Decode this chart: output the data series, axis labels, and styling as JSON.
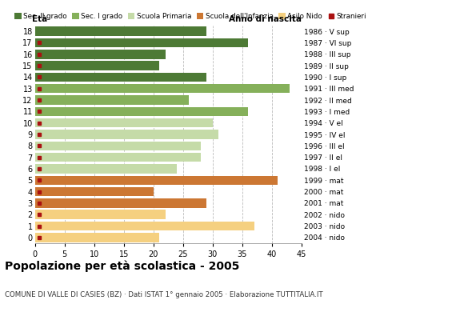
{
  "title": "Popolazione per età scolastica - 2005",
  "subtitle": "COMUNE DI VALLE DI CASIES (BZ) · Dati ISTAT 1° gennaio 2005 · Elaborazione TUTTITALIA.IT",
  "ages": [
    18,
    17,
    16,
    15,
    14,
    13,
    12,
    11,
    10,
    9,
    8,
    7,
    6,
    5,
    4,
    3,
    2,
    1,
    0
  ],
  "years": [
    "1986 · V sup",
    "1987 · VI sup",
    "1988 · III sup",
    "1989 · II sup",
    "1990 · I sup",
    "1991 · III med",
    "1992 · II med",
    "1993 · I med",
    "1994 · V el",
    "1995 · IV el",
    "1996 · III el",
    "1997 · II el",
    "1998 · I el",
    "1999 · mat",
    "2000 · mat",
    "2001 · mat",
    "2002 · nido",
    "2003 · nido",
    "2004 · nido"
  ],
  "values": [
    29,
    36,
    22,
    21,
    29,
    43,
    26,
    36,
    30,
    31,
    28,
    28,
    24,
    41,
    20,
    29,
    22,
    37,
    21
  ],
  "stranieri": [
    0,
    1,
    1,
    1,
    1,
    1,
    1,
    1,
    1,
    1,
    1,
    1,
    1,
    1,
    1,
    1,
    1,
    1,
    1
  ],
  "bar_colors_by_age": {
    "18": "#4d7a35",
    "17": "#4d7a35",
    "16": "#4d7a35",
    "15": "#4d7a35",
    "14": "#4d7a35",
    "13": "#85b05a",
    "12": "#85b05a",
    "11": "#85b05a",
    "10": "#c5dba8",
    "9": "#c5dba8",
    "8": "#c5dba8",
    "7": "#c5dba8",
    "6": "#c5dba8",
    "5": "#cc7733",
    "4": "#cc7733",
    "3": "#cc7733",
    "2": "#f5d080",
    "1": "#f5d080",
    "0": "#f5d080"
  },
  "stranieri_color": "#aa1111",
  "xlim": [
    0,
    45
  ],
  "xticks": [
    0,
    5,
    10,
    15,
    20,
    25,
    30,
    35,
    40,
    45
  ],
  "background_color": "#ffffff",
  "grid_color": "#bbbbbb",
  "legend_entries": [
    "Sec. II grado",
    "Sec. I grado",
    "Scuola Primaria",
    "Scuola dell'Infanzia",
    "Asilo Nido",
    "Stranieri"
  ],
  "legend_colors": [
    "#4d7a35",
    "#85b05a",
    "#c5dba8",
    "#cc7733",
    "#f5d080",
    "#aa1111"
  ]
}
